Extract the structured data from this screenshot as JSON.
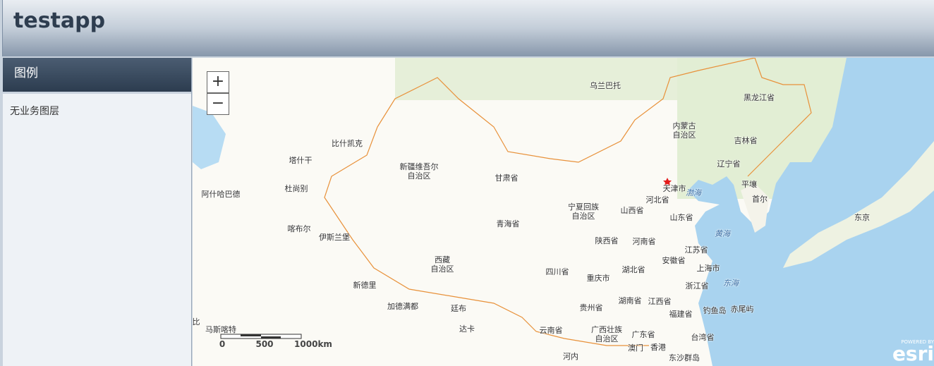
{
  "header": {
    "title": "testapp"
  },
  "sidebar": {
    "title": "图例",
    "empty_text": "无业务图层"
  },
  "map": {
    "zoom_in": "+",
    "zoom_out": "−",
    "labels": [
      "乌兰巴托",
      "黑龙江省",
      "内蒙古",
      "自治区",
      "比什凯克",
      "塔什干",
      "新疆维吾尔",
      "自治区",
      "甘肃省",
      "吉林省",
      "辽宁省",
      "阿什哈巴德",
      "杜尚别",
      "天津市",
      "渤海",
      "平壤",
      "河北省",
      "首尔",
      "宁夏回族",
      "自治区",
      "山西省",
      "山东省",
      "东京",
      "喀布尔",
      "伊斯兰堡",
      "青海省",
      "黄海",
      "陕西省",
      "河南省",
      "江苏省",
      "西藏",
      "自治区",
      "安徽省",
      "上海市",
      "四川省",
      "湖北省",
      "重庆市",
      "浙江省",
      "东海",
      "新德里",
      "加德满都",
      "廷布",
      "湖南省",
      "江西省",
      "贵州省",
      "福建省",
      "钓鱼岛",
      "赤尾屿",
      "达卡",
      "比",
      "马斯喀特",
      "云南省",
      "广西壮族",
      "自治区",
      "广东省",
      "台湾省",
      "澳门",
      "香港",
      "河内",
      "东沙群岛"
    ],
    "scale_bar": [
      "0",
      "500",
      "1000km"
    ],
    "attribution": {
      "powered_by": "POWERED BY",
      "brand": "esri"
    }
  }
}
